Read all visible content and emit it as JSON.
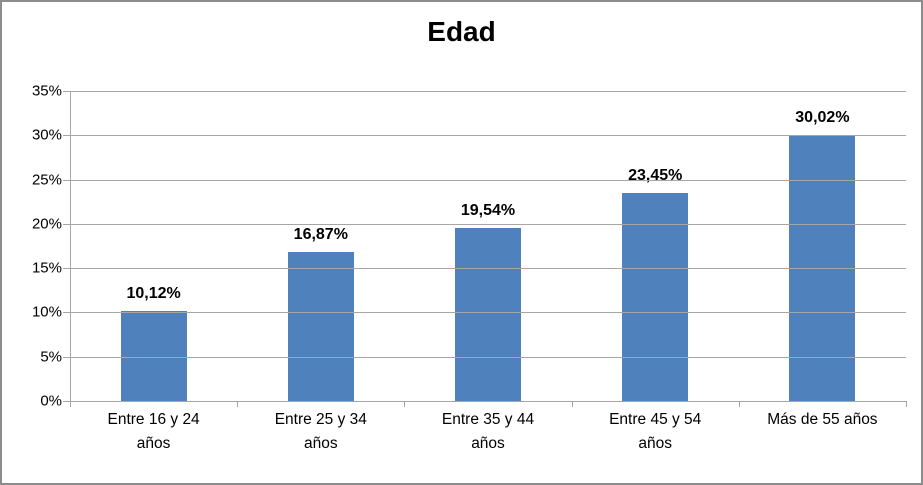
{
  "chart_data": {
    "type": "bar",
    "title": "Edad",
    "categories": [
      "Entre 16 y 24 años",
      "Entre 25 y 34 años",
      "Entre 35 y 44 años",
      "Entre 45 y 54 años",
      "Más de 55 años"
    ],
    "values": [
      10.12,
      16.87,
      19.54,
      23.45,
      30.02
    ],
    "value_labels": [
      "10,12%",
      "16,87%",
      "19,54%",
      "23,45%",
      "30,02%"
    ],
    "yticks": [
      "35%",
      "30%",
      "25%",
      "20%",
      "15%",
      "10%",
      "5%",
      "0%"
    ],
    "ylim": [
      0,
      35
    ],
    "ytick_step": 5,
    "grid": "horizontal",
    "legend": "none",
    "bar_color": "#4f81bd",
    "gridline_color": "#a6a6a6",
    "frame_border_color": "#8c8c8c",
    "title_color": "#000000",
    "label_color": "#000000"
  }
}
